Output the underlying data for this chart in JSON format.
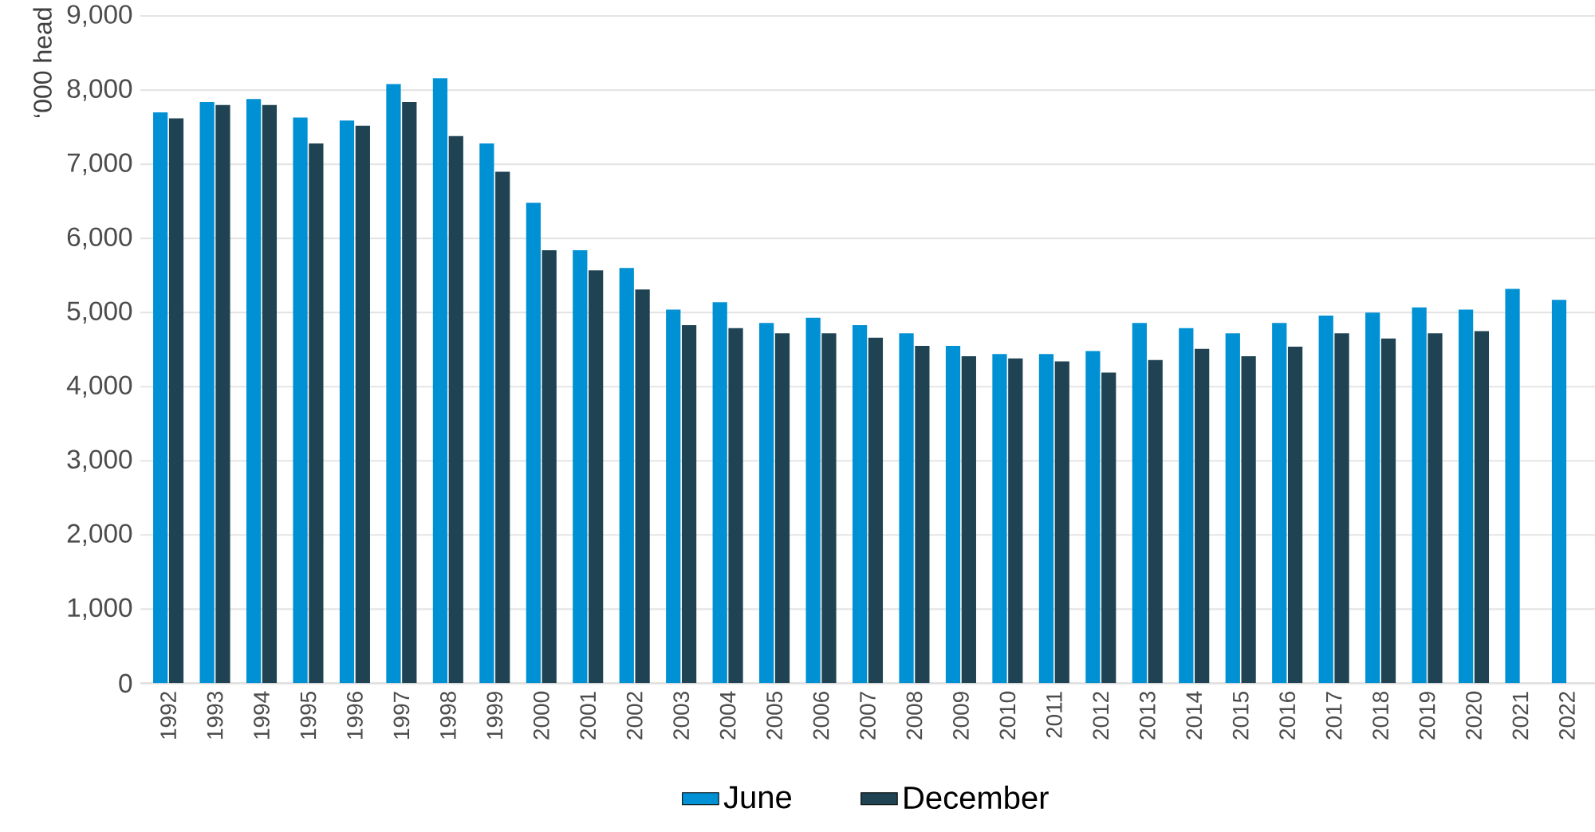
{
  "chart_data": {
    "type": "bar",
    "ylabel": "‘000 head",
    "categories": [
      "1992",
      "1993",
      "1994",
      "1995",
      "1996",
      "1997",
      "1998",
      "1999",
      "2000",
      "2001",
      "2002",
      "2003",
      "2004",
      "2005",
      "2006",
      "2007",
      "2008",
      "2009",
      "2010",
      "2011",
      "2012",
      "2013",
      "2014",
      "2015",
      "2016",
      "2017",
      "2018",
      "2019",
      "2020",
      "2021",
      "2022"
    ],
    "series": [
      {
        "name": "June",
        "color": "#0090d4",
        "values": [
          7700,
          7840,
          7880,
          7630,
          7590,
          8080,
          8160,
          7280,
          6480,
          5840,
          5600,
          5040,
          5140,
          4860,
          4930,
          4830,
          4720,
          4550,
          4440,
          4440,
          4480,
          4860,
          4790,
          4720,
          4860,
          4960,
          5000,
          5070,
          5040,
          5320,
          5170
        ]
      },
      {
        "name": "December",
        "color": "#1f4353",
        "values": [
          7620,
          7800,
          7800,
          7280,
          7520,
          7840,
          7380,
          6900,
          5840,
          5570,
          5310,
          4830,
          4790,
          4720,
          4720,
          4660,
          4550,
          4410,
          4380,
          4340,
          4190,
          4360,
          4510,
          4410,
          4540,
          4720,
          4650,
          4720,
          4750,
          null,
          null
        ]
      }
    ],
    "ylim": [
      0,
      9000
    ],
    "yticks": [
      0,
      {
        "value": 1000,
        "label": "1,000"
      },
      {
        "value": 2000,
        "label": "2,000"
      },
      {
        "value": 3000,
        "label": "3,000"
      },
      {
        "value": 4000,
        "label": "4,000"
      },
      {
        "value": 5000,
        "label": "5,000"
      },
      {
        "value": 6000,
        "label": "6,000"
      },
      {
        "value": 7000,
        "label": "7,000"
      },
      {
        "value": 8000,
        "label": "8,000"
      },
      {
        "value": 9000,
        "label": "9,000"
      }
    ],
    "grid": "y",
    "legend": "bottom"
  }
}
